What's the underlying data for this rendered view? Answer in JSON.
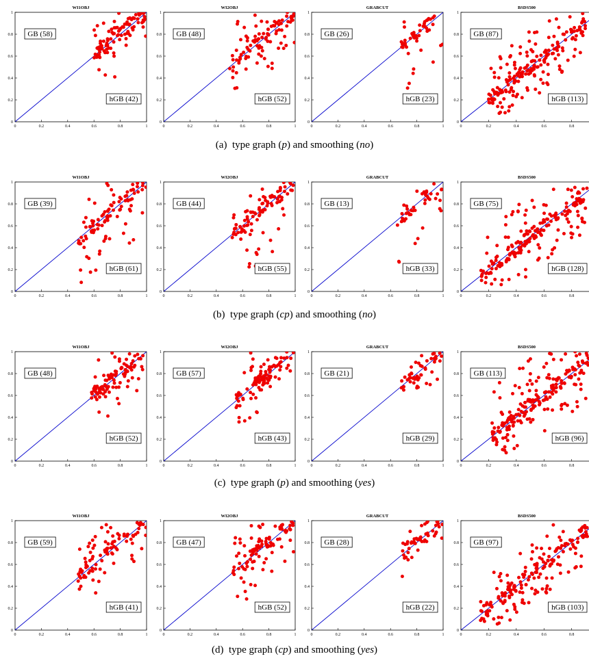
{
  "figure": {
    "captions": [
      {
        "label": "(a)",
        "pre": "type graph (",
        "graph": "p",
        "mid": ") and smoothing (",
        "smooth": "no",
        "post": ")"
      },
      {
        "label": "(b)",
        "pre": "type graph (",
        "graph": "cp",
        "mid": ") and smoothing (",
        "smooth": "no",
        "post": ")"
      },
      {
        "label": "(c)",
        "pre": "type graph (",
        "graph": "p",
        "mid": ") and smoothing (",
        "smooth": "yes",
        "post": ")"
      },
      {
        "label": "(d)",
        "pre": "type graph (",
        "graph": "cp",
        "mid": ") and smoothing (",
        "smooth": "yes",
        "post": ")"
      }
    ]
  },
  "colors": {
    "points": "#ee0000",
    "diagonal": "#0000cc",
    "axes": "#000000"
  },
  "chart_data": [
    {
      "row": 0,
      "col": 0,
      "type": "scatter",
      "title": "WI1OBJ",
      "xlim": [
        0,
        1
      ],
      "ylim": [
        0,
        1
      ],
      "gb_label": "GB (58)",
      "hgb_label": "hGB (42)",
      "n_above": 58,
      "n_below": 42,
      "x_range": [
        0.6,
        1.0
      ],
      "y_offset": [
        -0.35,
        0.25
      ],
      "diagonal": true,
      "x_ticks": [
        "0",
        "0.2",
        "0.4",
        "0.6",
        "0.8",
        "1"
      ],
      "y_ticks": [
        "0",
        "0.2",
        "0.4",
        "0.6",
        "0.8",
        "1"
      ]
    },
    {
      "row": 0,
      "col": 1,
      "type": "scatter",
      "title": "WI2OBJ",
      "xlim": [
        0,
        1
      ],
      "ylim": [
        0,
        1
      ],
      "gb_label": "GB (48)",
      "hgb_label": "hGB (52)",
      "n_above": 48,
      "n_below": 52,
      "x_range": [
        0.5,
        1.0
      ],
      "y_offset": [
        -0.35,
        0.35
      ],
      "diagonal": true,
      "x_ticks": [
        "0",
        "0.2",
        "0.4",
        "0.6",
        "0.8",
        "1"
      ],
      "y_ticks": [
        "0",
        "0.2",
        "0.4",
        "0.6",
        "0.8",
        "1"
      ]
    },
    {
      "row": 0,
      "col": 2,
      "type": "scatter",
      "title": "GRABCUT",
      "xlim": [
        0,
        1
      ],
      "ylim": [
        0,
        1
      ],
      "gb_label": "GB (26)",
      "hgb_label": "hGB (23)",
      "n_above": 26,
      "n_below": 23,
      "x_range": [
        0.68,
        1.0
      ],
      "y_offset": [
        -0.45,
        0.3
      ],
      "diagonal": true,
      "x_ticks": [
        "0",
        "0.2",
        "0.4",
        "0.6",
        "0.8",
        "1"
      ],
      "y_ticks": [
        "0",
        "0.2",
        "0.4",
        "0.6",
        "0.8",
        "1"
      ]
    },
    {
      "row": 0,
      "col": 3,
      "type": "scatter",
      "title": "BSDS500",
      "xlim": [
        0,
        0.95
      ],
      "ylim": [
        0,
        1
      ],
      "gb_label": "GB (87)",
      "hgb_label": "hGB (113)",
      "n_above": 87,
      "n_below": 113,
      "x_range": [
        0.2,
        0.9
      ],
      "y_offset": [
        -0.3,
        0.35
      ],
      "diagonal": true,
      "x_ticks": [
        "0",
        "0.2",
        "0.4",
        "0.6",
        "0.8"
      ],
      "y_ticks": [
        "0",
        "0.2",
        "0.4",
        "0.6",
        "0.8",
        "1"
      ]
    },
    {
      "row": 1,
      "col": 0,
      "type": "scatter",
      "title": "WI1OBJ",
      "xlim": [
        0,
        1
      ],
      "ylim": [
        0,
        1
      ],
      "gb_label": "GB (39)",
      "hgb_label": "hGB (61)",
      "n_above": 39,
      "n_below": 61,
      "x_range": [
        0.48,
        1.0
      ],
      "y_offset": [
        -0.45,
        0.3
      ],
      "diagonal": true,
      "x_ticks": [
        "0",
        "0.2",
        "0.4",
        "0.6",
        "0.8",
        "1"
      ],
      "y_ticks": [
        "0",
        "0.2",
        "0.4",
        "0.6",
        "0.8",
        "1"
      ]
    },
    {
      "row": 1,
      "col": 1,
      "type": "scatter",
      "title": "WI2OBJ",
      "xlim": [
        0,
        1
      ],
      "ylim": [
        0,
        1
      ],
      "gb_label": "GB (44)",
      "hgb_label": "hGB (55)",
      "n_above": 44,
      "n_below": 55,
      "x_range": [
        0.52,
        1.0
      ],
      "y_offset": [
        -0.5,
        0.35
      ],
      "diagonal": true,
      "x_ticks": [
        "0",
        "0.2",
        "0.4",
        "0.6",
        "0.8",
        "1"
      ],
      "y_ticks": [
        "0",
        "0.2",
        "0.4",
        "0.6",
        "0.8",
        "1"
      ]
    },
    {
      "row": 1,
      "col": 2,
      "type": "scatter",
      "title": "GRABCUT",
      "xlim": [
        0,
        1
      ],
      "ylim": [
        0,
        1
      ],
      "gb_label": "GB (13)",
      "hgb_label": "hGB (33)",
      "n_above": 13,
      "n_below": 33,
      "x_range": [
        0.65,
        1.0
      ],
      "y_offset": [
        -0.4,
        0.15
      ],
      "diagonal": true,
      "x_ticks": [
        "0",
        "0.2",
        "0.4",
        "0.6",
        "0.8",
        "1"
      ],
      "y_ticks": [
        "0",
        "0.2",
        "0.4",
        "0.6",
        "0.8",
        "1"
      ]
    },
    {
      "row": 1,
      "col": 3,
      "type": "scatter",
      "title": "BSDS500",
      "xlim": [
        0,
        0.95
      ],
      "ylim": [
        0,
        1
      ],
      "gb_label": "GB (75)",
      "hgb_label": "hGB (128)",
      "n_above": 75,
      "n_below": 128,
      "x_range": [
        0.14,
        0.92
      ],
      "y_offset": [
        -0.35,
        0.4
      ],
      "diagonal": true,
      "x_ticks": [
        "0",
        "0.2",
        "0.4",
        "0.6",
        "0.8"
      ],
      "y_ticks": [
        "0",
        "0.2",
        "0.4",
        "0.6",
        "0.8",
        "1"
      ]
    },
    {
      "row": 2,
      "col": 0,
      "type": "scatter",
      "title": "WI1OBJ",
      "xlim": [
        0,
        1
      ],
      "ylim": [
        0,
        1
      ],
      "gb_label": "GB (48)",
      "hgb_label": "hGB (52)",
      "n_above": 48,
      "n_below": 52,
      "x_range": [
        0.58,
        1.0
      ],
      "y_offset": [
        -0.3,
        0.3
      ],
      "diagonal": true,
      "x_ticks": [
        "0",
        "0.2",
        "0.4",
        "0.6",
        "0.8",
        "1"
      ],
      "y_ticks": [
        "0",
        "0.2",
        "0.4",
        "0.6",
        "0.8",
        "1"
      ]
    },
    {
      "row": 2,
      "col": 1,
      "type": "scatter",
      "title": "WI2OBJ",
      "xlim": [
        0,
        1
      ],
      "ylim": [
        0,
        1
      ],
      "gb_label": "GB (57)",
      "hgb_label": "hGB (43)",
      "n_above": 57,
      "n_below": 43,
      "x_range": [
        0.55,
        1.0
      ],
      "y_offset": [
        -0.3,
        0.35
      ],
      "diagonal": true,
      "x_ticks": [
        "0",
        "0.2",
        "0.4",
        "0.6",
        "0.8",
        "1"
      ],
      "y_ticks": [
        "0",
        "0.2",
        "0.4",
        "0.6",
        "0.8",
        "1"
      ]
    },
    {
      "row": 2,
      "col": 2,
      "type": "scatter",
      "title": "GRABCUT",
      "xlim": [
        0,
        1
      ],
      "ylim": [
        0,
        1
      ],
      "gb_label": "GB (21)",
      "hgb_label": "hGB (29)",
      "n_above": 21,
      "n_below": 29,
      "x_range": [
        0.68,
        1.0
      ],
      "y_offset": [
        -0.25,
        0.15
      ],
      "diagonal": true,
      "x_ticks": [
        "0",
        "0.2",
        "0.4",
        "0.6",
        "0.8",
        "1"
      ],
      "y_ticks": [
        "0",
        "0.2",
        "0.4",
        "0.6",
        "0.8",
        "1"
      ]
    },
    {
      "row": 2,
      "col": 3,
      "type": "scatter",
      "title": "BSDS500",
      "xlim": [
        0,
        0.95
      ],
      "ylim": [
        0,
        1
      ],
      "gb_label": "GB (113)",
      "hgb_label": "hGB (96)",
      "n_above": 113,
      "n_below": 96,
      "x_range": [
        0.2,
        0.92
      ],
      "y_offset": [
        -0.35,
        0.45
      ],
      "diagonal": true,
      "x_ticks": [
        "0",
        "0.2",
        "0.4",
        "0.6",
        "0.8"
      ],
      "y_ticks": [
        "0",
        "0.2",
        "0.4",
        "0.6",
        "0.8",
        "1"
      ]
    },
    {
      "row": 3,
      "col": 0,
      "type": "scatter",
      "title": "WI1OBJ",
      "xlim": [
        0,
        1
      ],
      "ylim": [
        0,
        1
      ],
      "gb_label": "GB (59)",
      "hgb_label": "hGB (41)",
      "n_above": 59,
      "n_below": 41,
      "x_range": [
        0.48,
        1.0
      ],
      "y_offset": [
        -0.3,
        0.3
      ],
      "diagonal": true,
      "x_ticks": [
        "0",
        "0.2",
        "0.4",
        "0.6",
        "0.8",
        "1"
      ],
      "y_ticks": [
        "0",
        "0.2",
        "0.4",
        "0.6",
        "0.8",
        "1"
      ]
    },
    {
      "row": 3,
      "col": 1,
      "type": "scatter",
      "title": "WI2OBJ",
      "xlim": [
        0,
        1
      ],
      "ylim": [
        0,
        1
      ],
      "gb_label": "GB (47)",
      "hgb_label": "hGB (52)",
      "n_above": 47,
      "n_below": 52,
      "x_range": [
        0.52,
        1.0
      ],
      "y_offset": [
        -0.35,
        0.35
      ],
      "diagonal": true,
      "x_ticks": [
        "0",
        "0.2",
        "0.4",
        "0.6",
        "0.8",
        "1"
      ],
      "y_ticks": [
        "0",
        "0.2",
        "0.4",
        "0.6",
        "0.8",
        "1"
      ]
    },
    {
      "row": 3,
      "col": 2,
      "type": "scatter",
      "title": "GRABCUT",
      "xlim": [
        0,
        1
      ],
      "ylim": [
        0,
        1
      ],
      "gb_label": "GB (28)",
      "hgb_label": "hGB (22)",
      "n_above": 28,
      "n_below": 22,
      "x_range": [
        0.68,
        1.0
      ],
      "y_offset": [
        -0.22,
        0.15
      ],
      "diagonal": true,
      "x_ticks": [
        "0",
        "0.2",
        "0.4",
        "0.6",
        "0.8",
        "1"
      ],
      "y_ticks": [
        "0",
        "0.2",
        "0.4",
        "0.6",
        "0.8",
        "1"
      ]
    },
    {
      "row": 3,
      "col": 3,
      "type": "scatter",
      "title": "BSDS500",
      "xlim": [
        0,
        0.95
      ],
      "ylim": [
        0,
        1
      ],
      "gb_label": "GB (97)",
      "hgb_label": "hGB (103)",
      "n_above": 97,
      "n_below": 103,
      "x_range": [
        0.14,
        0.92
      ],
      "y_offset": [
        -0.3,
        0.3
      ],
      "diagonal": true,
      "x_ticks": [
        "0",
        "0.2",
        "0.4",
        "0.6",
        "0.8"
      ],
      "y_ticks": [
        "0",
        "0.2",
        "0.4",
        "0.6",
        "0.8",
        "1"
      ]
    }
  ]
}
